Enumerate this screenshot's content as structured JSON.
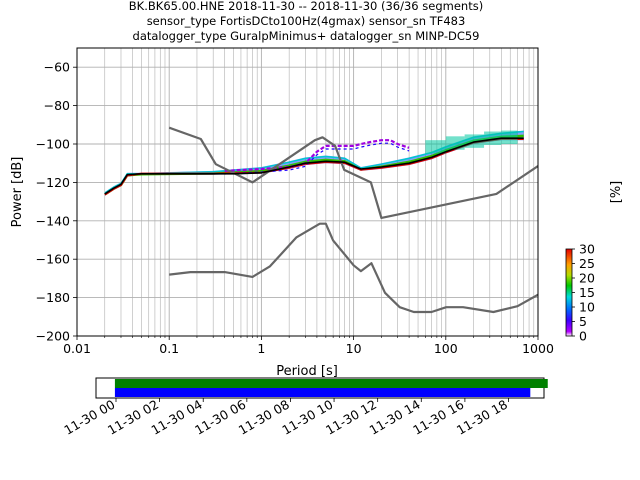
{
  "chart_data": [
    {
      "type": "line",
      "title_lines": [
        "BK.BK65.00.HNE   2018-11-30 -- 2018-11-30  (36/36 segments)",
        "sensor_type FortisDCto100Hz(4gmax) sensor_sn TF483",
        "datalogger_type GuralpMinimus+ datalogger_sn MINP-DC59"
      ],
      "xlabel": "Period [s]",
      "ylabel": "Power [dB]",
      "xscale": "log",
      "xlim": [
        0.01,
        1000
      ],
      "ylim": [
        -200,
        -50
      ],
      "x_tick_labels": [
        "0.01",
        "0.1",
        "1",
        "10",
        "100",
        "1000"
      ],
      "y_tick_labels": [
        "−200",
        "−180",
        "−160",
        "−140",
        "−120",
        "−100",
        "−80",
        "−60"
      ],
      "grid": true,
      "series": [
        {
          "role": "model-upper",
          "color": "#666666",
          "x": [
            0.1,
            0.22,
            0.32,
            0.8,
            3.8,
            4.6,
            6.3,
            7.9,
            15.4,
            20,
            354,
            1000
          ],
          "y": [
            -91.5,
            -97.4,
            -110.5,
            -120,
            -98,
            -96.5,
            -101,
            -113.5,
            -120,
            -138.5,
            -126,
            -111.5
          ]
        },
        {
          "role": "model-lower",
          "color": "#666666",
          "x": [
            0.1,
            0.17,
            0.4,
            0.8,
            1.24,
            2.4,
            4.3,
            5,
            6,
            10,
            12,
            15.6,
            21.9,
            31.6,
            45,
            70,
            101,
            154,
            328,
            600,
            1000
          ],
          "y": [
            -168,
            -166.7,
            -166.7,
            -169.2,
            -163.7,
            -148.6,
            -141.5,
            -141.5,
            -150.2,
            -163.2,
            -166.2,
            -162.1,
            -177.5,
            -185,
            -187.5,
            -187.5,
            -185,
            -185,
            -187.5,
            -184.5,
            -178.5
          ]
        },
        {
          "role": "mode",
          "color": "#000000",
          "x": [
            0.02,
            0.025,
            0.03,
            0.035,
            0.05,
            0.1,
            0.2,
            0.5,
            1,
            2,
            3,
            5,
            8,
            12,
            20,
            40,
            70,
            100,
            200,
            400,
            700
          ],
          "y": [
            -126,
            -123,
            -121,
            -116,
            -115.5,
            -115.5,
            -115.5,
            -115.5,
            -115,
            -112,
            -110,
            -109,
            -109.5,
            -113,
            -112,
            -110,
            -107,
            -104,
            -99,
            -97,
            -97
          ]
        }
      ],
      "probability_bands": [
        {
          "x": [
            0.02,
            0.025,
            0.03,
            0.035,
            0.05,
            0.3,
            1,
            2,
            3,
            5,
            8,
            12,
            20,
            40,
            70,
            100,
            200,
            400,
            700
          ],
          "low": [
            -127,
            -124,
            -122,
            -117,
            -116,
            -116,
            -115.5,
            -113,
            -111,
            -110,
            -110.5,
            -114,
            -113,
            -111,
            -108,
            -105,
            -100,
            -98,
            -98
          ],
          "high": [
            -125,
            -122,
            -120,
            -115,
            -115,
            -114,
            -112,
            -109,
            -107,
            -106,
            -107,
            -112,
            -110,
            -107,
            -104,
            -101,
            -96,
            -94,
            -93
          ]
        }
      ],
      "outlier_segments": [
        {
          "x": [
            0.4,
            1,
            2,
            3,
            4,
            5,
            6,
            8,
            10,
            12,
            15,
            20,
            25,
            30,
            40
          ],
          "y": [
            -114,
            -113,
            -112,
            -110,
            -104,
            -101,
            -101,
            -101,
            -101,
            -100,
            -99,
            -98,
            -98,
            -100,
            -102
          ]
        }
      ],
      "colorbar": {
        "label": "[%]",
        "tick_labels": [
          "0",
          "5",
          "10",
          "15",
          "20",
          "25",
          "30"
        ],
        "range": [
          0,
          30
        ]
      }
    },
    {
      "type": "timeline",
      "x_tick_labels": [
        "11-30 00",
        "11-30 02",
        "11-30 04",
        "11-30 06",
        "11-30 08",
        "11-30 10",
        "11-30 12",
        "11-30 14",
        "11-30 16",
        "11-30 18"
      ],
      "bars": [
        {
          "color": "#008000",
          "start_hour": -0.05,
          "end_hour": 19.8
        },
        {
          "color": "#0000ff",
          "start_hour": -0.05,
          "end_hour": 19.0
        }
      ]
    }
  ]
}
